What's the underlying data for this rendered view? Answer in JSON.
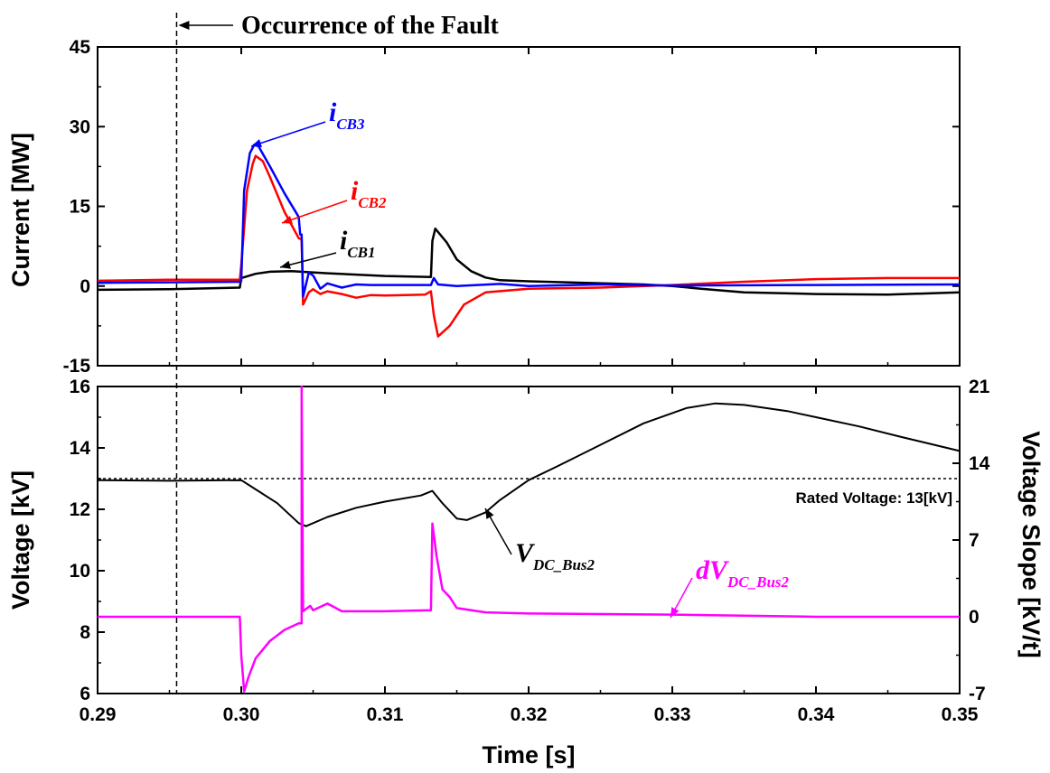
{
  "chart_data": [
    {
      "type": "line",
      "panel": "top",
      "ylabel": "Current [MW]",
      "xlim": [
        0.29,
        0.35
      ],
      "ylim": [
        -15,
        45
      ],
      "yticks": [
        "-15",
        "0",
        "15",
        "30",
        "45"
      ],
      "annotation": "Occurrence of the Fault",
      "fault_time": 0.2955,
      "series": [
        {
          "name": "iCB1",
          "label_main": "i",
          "label_sub": "CB1",
          "color": "#000000",
          "points": [
            [
              0.29,
              -0.7
            ],
            [
              0.295,
              -0.6
            ],
            [
              0.2999,
              -0.3
            ],
            [
              0.3,
              1.5
            ],
            [
              0.301,
              2.3
            ],
            [
              0.302,
              2.7
            ],
            [
              0.3035,
              2.8
            ],
            [
              0.306,
              2.4
            ],
            [
              0.31,
              1.9
            ],
            [
              0.3132,
              1.7
            ],
            [
              0.3133,
              8.5
            ],
            [
              0.3135,
              10.8
            ],
            [
              0.3143,
              8.2
            ],
            [
              0.315,
              5.0
            ],
            [
              0.316,
              2.8
            ],
            [
              0.317,
              1.6
            ],
            [
              0.318,
              1.1
            ],
            [
              0.32,
              0.9
            ],
            [
              0.324,
              0.6
            ],
            [
              0.328,
              0.3
            ],
            [
              0.33,
              0.0
            ],
            [
              0.332,
              -0.5
            ],
            [
              0.335,
              -1.2
            ],
            [
              0.34,
              -1.5
            ],
            [
              0.345,
              -1.6
            ],
            [
              0.35,
              -1.2
            ]
          ]
        },
        {
          "name": "iCB2",
          "label_main": "i",
          "label_sub": "CB2",
          "color": "#ff0000",
          "points": [
            [
              0.29,
              1.0
            ],
            [
              0.295,
              1.2
            ],
            [
              0.2999,
              1.2
            ],
            [
              0.3,
              4.0
            ],
            [
              0.3004,
              18.0
            ],
            [
              0.3008,
              23.0
            ],
            [
              0.301,
              24.5
            ],
            [
              0.3015,
              23.5
            ],
            [
              0.302,
              20.5
            ],
            [
              0.303,
              14.0
            ],
            [
              0.304,
              9.0
            ],
            [
              0.3042,
              8.8
            ],
            [
              0.3043,
              -3.5
            ],
            [
              0.3047,
              -1.2
            ],
            [
              0.305,
              -0.6
            ],
            [
              0.3055,
              -1.5
            ],
            [
              0.306,
              -1.0
            ],
            [
              0.307,
              -1.5
            ],
            [
              0.308,
              -2.2
            ],
            [
              0.309,
              -1.7
            ],
            [
              0.31,
              -1.8
            ],
            [
              0.3128,
              -1.6
            ],
            [
              0.3132,
              -1.0
            ],
            [
              0.3134,
              -5.5
            ],
            [
              0.3137,
              -9.5
            ],
            [
              0.3145,
              -7.5
            ],
            [
              0.3155,
              -3.5
            ],
            [
              0.317,
              -1.2
            ],
            [
              0.32,
              -0.5
            ],
            [
              0.325,
              -0.3
            ],
            [
              0.33,
              0.2
            ],
            [
              0.335,
              0.8
            ],
            [
              0.34,
              1.3
            ],
            [
              0.345,
              1.5
            ],
            [
              0.35,
              1.5
            ]
          ]
        },
        {
          "name": "iCB3",
          "label_main": "i",
          "label_sub": "CB3",
          "color": "#0000ff",
          "points": [
            [
              0.29,
              0.6
            ],
            [
              0.295,
              0.7
            ],
            [
              0.2999,
              0.8
            ],
            [
              0.3,
              1.0
            ],
            [
              0.3002,
              18.0
            ],
            [
              0.3006,
              25.0
            ],
            [
              0.3009,
              26.6
            ],
            [
              0.3012,
              26.3
            ],
            [
              0.302,
              22.5
            ],
            [
              0.303,
              17.5
            ],
            [
              0.304,
              13.0
            ],
            [
              0.3041,
              9.7
            ],
            [
              0.3042,
              9.7
            ],
            [
              0.3043,
              -2.0
            ],
            [
              0.3047,
              2.5
            ],
            [
              0.305,
              2.0
            ],
            [
              0.3055,
              -0.5
            ],
            [
              0.306,
              0.5
            ],
            [
              0.307,
              -0.3
            ],
            [
              0.308,
              0.3
            ],
            [
              0.309,
              0.2
            ],
            [
              0.3132,
              0.2
            ],
            [
              0.3134,
              1.5
            ],
            [
              0.3137,
              0.3
            ],
            [
              0.315,
              0.0
            ],
            [
              0.318,
              0.4
            ],
            [
              0.32,
              0.0
            ],
            [
              0.325,
              0.3
            ],
            [
              0.33,
              0.1
            ],
            [
              0.34,
              0.2
            ],
            [
              0.35,
              0.3
            ]
          ]
        }
      ]
    },
    {
      "type": "line",
      "panel": "bottom",
      "xlabel": "Time [s]",
      "ylabel_left": "Voltage [kV]",
      "ylabel_right": "Voltage Slope [kV/t]",
      "xlim": [
        0.29,
        0.35
      ],
      "ylim_left": [
        6,
        16
      ],
      "ylim_right": [
        -7,
        21
      ],
      "xticks": [
        "0.29",
        "0.30",
        "0.31",
        "0.32",
        "0.33",
        "0.34",
        "0.35"
      ],
      "yticks_left": [
        "6",
        "8",
        "10",
        "12",
        "14",
        "16"
      ],
      "yticks_right": [
        "-7",
        "0",
        "7",
        "14",
        "21"
      ],
      "rated_voltage": 13,
      "rated_label": "Rated Voltage: 13[kV]",
      "series": [
        {
          "name": "VDC_Bus2",
          "label_main": "V",
          "label_sub": "DC_Bus2",
          "color": "#000000",
          "axis": "left",
          "points": [
            [
              0.29,
              12.95
            ],
            [
              0.295,
              12.93
            ],
            [
              0.3,
              12.95
            ],
            [
              0.301,
              12.65
            ],
            [
              0.3025,
              12.2
            ],
            [
              0.304,
              11.55
            ],
            [
              0.3045,
              11.45
            ],
            [
              0.306,
              11.75
            ],
            [
              0.308,
              12.05
            ],
            [
              0.31,
              12.25
            ],
            [
              0.3125,
              12.45
            ],
            [
              0.3133,
              12.6
            ],
            [
              0.314,
              12.2
            ],
            [
              0.315,
              11.7
            ],
            [
              0.3157,
              11.65
            ],
            [
              0.317,
              11.9
            ],
            [
              0.318,
              12.3
            ],
            [
              0.32,
              12.95
            ],
            [
              0.322,
              13.4
            ],
            [
              0.325,
              14.1
            ],
            [
              0.328,
              14.8
            ],
            [
              0.331,
              15.3
            ],
            [
              0.333,
              15.45
            ],
            [
              0.335,
              15.4
            ],
            [
              0.338,
              15.2
            ],
            [
              0.34,
              15.0
            ],
            [
              0.343,
              14.7
            ],
            [
              0.346,
              14.35
            ],
            [
              0.35,
              13.9
            ]
          ]
        },
        {
          "name": "dVDC_Bus2",
          "label_main": "dV",
          "label_sub": "DC_Bus2",
          "color": "#ff00ff",
          "axis": "right",
          "points": [
            [
              0.29,
              0.0
            ],
            [
              0.2999,
              0.0
            ],
            [
              0.3,
              -3.5
            ],
            [
              0.3002,
              -6.8
            ],
            [
              0.3005,
              -5.5
            ],
            [
              0.301,
              -3.8
            ],
            [
              0.302,
              -2.2
            ],
            [
              0.303,
              -1.2
            ],
            [
              0.304,
              -0.6
            ],
            [
              0.3042,
              -0.6
            ],
            [
              0.3042,
              21.0
            ],
            [
              0.3043,
              0.5
            ],
            [
              0.3048,
              1.0
            ],
            [
              0.305,
              0.6
            ],
            [
              0.306,
              1.2
            ],
            [
              0.307,
              0.5
            ],
            [
              0.31,
              0.5
            ],
            [
              0.3132,
              0.6
            ],
            [
              0.3133,
              8.5
            ],
            [
              0.3136,
              5.5
            ],
            [
              0.314,
              2.5
            ],
            [
              0.3145,
              1.8
            ],
            [
              0.315,
              0.8
            ],
            [
              0.317,
              0.4
            ],
            [
              0.32,
              0.3
            ],
            [
              0.33,
              0.2
            ],
            [
              0.34,
              0.0
            ],
            [
              0.35,
              0.0
            ]
          ]
        }
      ]
    }
  ]
}
